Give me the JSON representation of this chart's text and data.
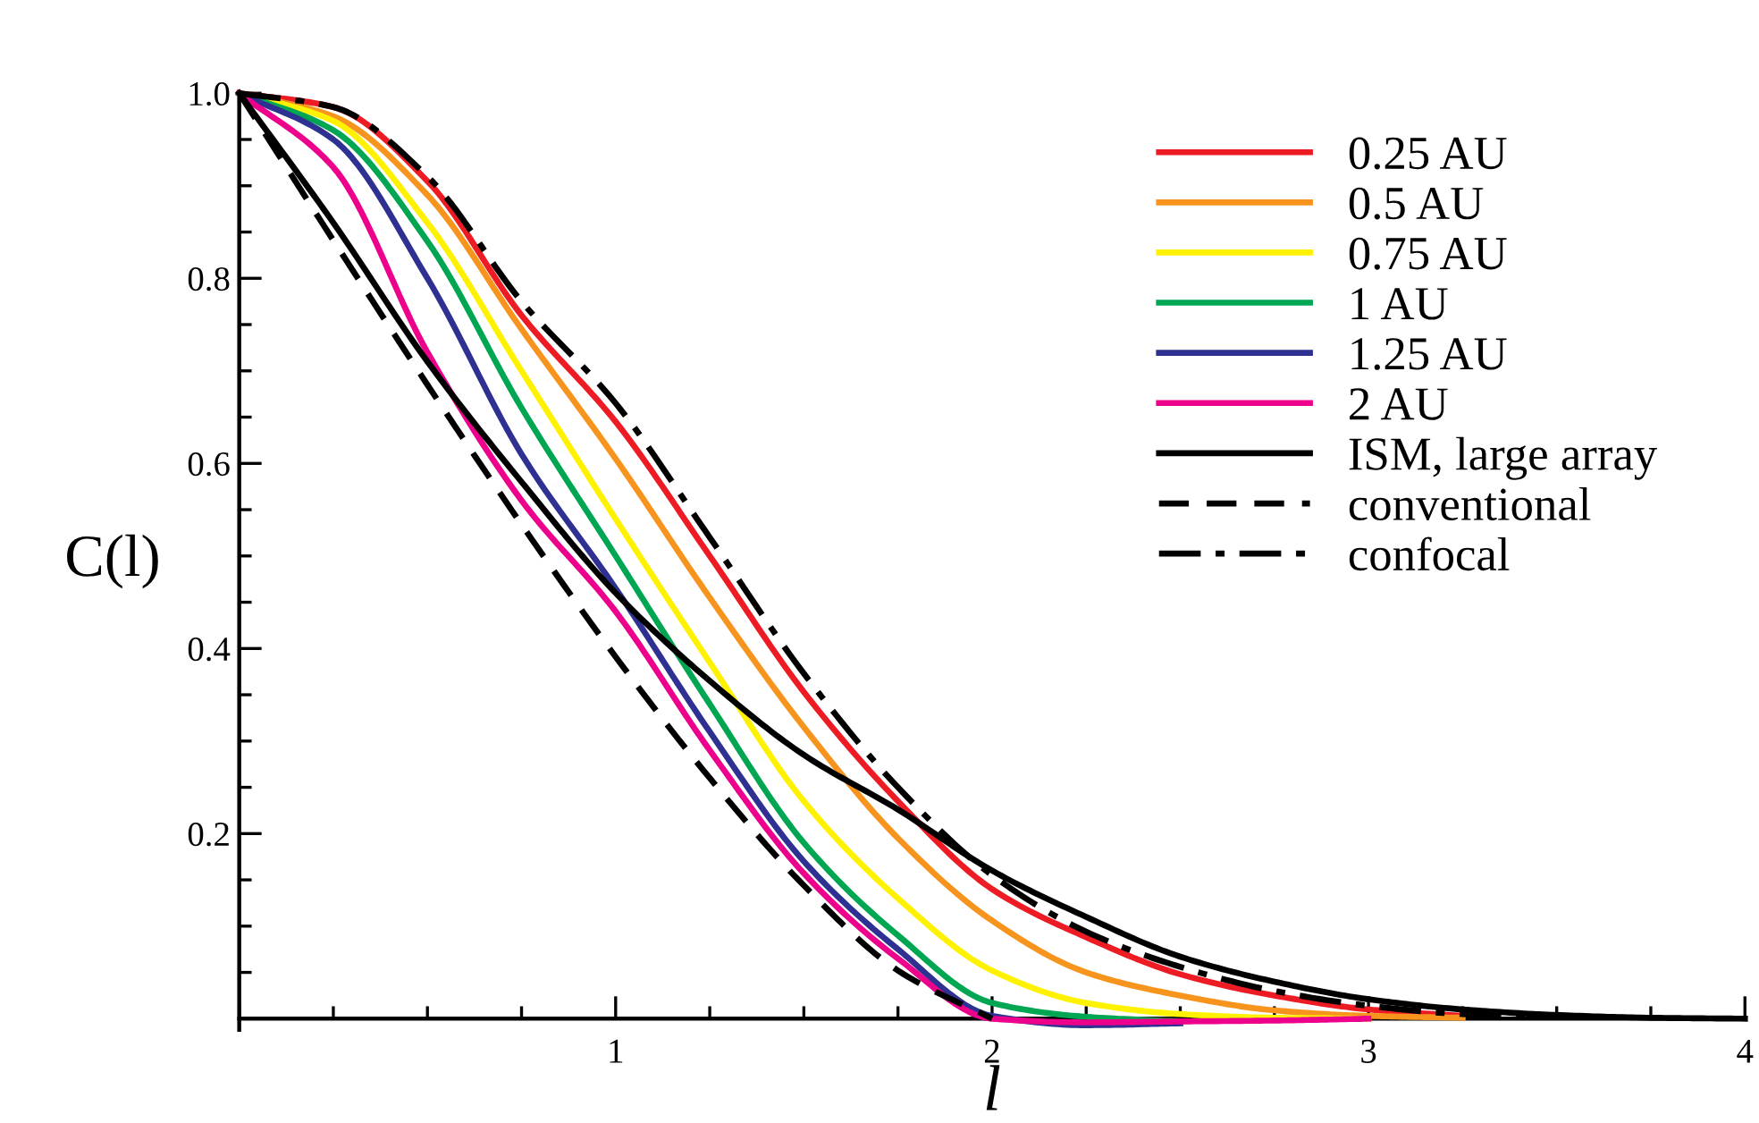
{
  "chart_data": {
    "type": "line",
    "xlabel": "l",
    "ylabel": "C(l)",
    "xlim": [
      0,
      4
    ],
    "ylim": [
      -0.012,
      1.0
    ],
    "xticks": [
      {
        "value": 0,
        "label": null
      },
      {
        "value": 0.25,
        "label": null
      },
      {
        "value": 0.5,
        "label": null
      },
      {
        "value": 0.75,
        "label": null
      },
      1,
      {
        "value": 1.25,
        "label": null
      },
      {
        "value": 1.5,
        "label": null
      },
      {
        "value": 1.75,
        "label": null
      },
      2,
      {
        "value": 2.25,
        "label": null
      },
      {
        "value": 2.5,
        "label": null
      },
      {
        "value": 2.75,
        "label": null
      },
      3,
      {
        "value": 3.25,
        "label": null
      },
      {
        "value": 3.5,
        "label": null
      },
      {
        "value": 3.75,
        "label": null
      },
      4
    ],
    "yticks": [
      {
        "value": 0,
        "label": null
      },
      {
        "value": 0.05,
        "label": null
      },
      {
        "value": 0.1,
        "label": null
      },
      {
        "value": 0.15,
        "label": null
      },
      0.2,
      {
        "value": 0.25,
        "label": null
      },
      {
        "value": 0.3,
        "label": null
      },
      {
        "value": 0.35,
        "label": null
      },
      0.4,
      {
        "value": 0.45,
        "label": null
      },
      {
        "value": 0.5,
        "label": null
      },
      {
        "value": 0.55,
        "label": null
      },
      0.6,
      {
        "value": 0.65,
        "label": null
      },
      {
        "value": 0.7,
        "label": null
      },
      {
        "value": 0.75,
        "label": null
      },
      0.8,
      {
        "value": 0.85,
        "label": null
      },
      {
        "value": 0.9,
        "label": null
      },
      {
        "value": 0.95,
        "label": null
      },
      {
        "value": 1,
        "label": "1.0"
      }
    ],
    "grid": false,
    "legend": "top right",
    "marker": "none",
    "x": [
      0,
      0.25,
      0.5,
      0.75,
      1,
      1.25,
      1.5,
      1.75,
      2,
      2.25,
      2.5,
      2.75,
      3,
      3.25,
      3.5,
      3.75,
      4
    ],
    "series": [
      {
        "name": "0.25 AU",
        "color": "#ed1c24",
        "line_style": "solid",
        "values": [
          1,
          0.985,
          0.905,
          0.76,
          0.645,
          0.5,
          0.353,
          0.235,
          0.14,
          0.088,
          0.048,
          0.025,
          0.01,
          0.003,
          null,
          null,
          null
        ]
      },
      {
        "name": "0.5 AU",
        "color": "#f7941d",
        "line_style": "solid",
        "values": [
          1,
          0.975,
          0.89,
          0.745,
          0.605,
          0.455,
          0.315,
          0.195,
          0.106,
          0.05,
          0.025,
          0.009,
          0.003,
          0.001,
          null,
          null,
          null
        ]
      },
      {
        "name": "0.75 AU",
        "color": "#fff200",
        "line_style": "solid",
        "values": [
          1,
          0.97,
          0.86,
          0.7,
          0.54,
          0.385,
          0.235,
          0.13,
          0.052,
          0.017,
          0.005,
          0.001,
          0,
          null,
          null,
          null,
          null
        ]
      },
      {
        "name": "1 AU",
        "color": "#00a651",
        "line_style": "solid",
        "values": [
          1,
          0.96,
          0.84,
          0.66,
          0.5,
          0.34,
          0.19,
          0.09,
          0.017,
          0.002,
          -0.003,
          null,
          null,
          null,
          null,
          null,
          null
        ]
      },
      {
        "name": "1.25 AU",
        "color": "#2e3192",
        "line_style": "solid",
        "values": [
          1,
          0.95,
          0.8,
          0.61,
          0.465,
          0.31,
          0.17,
          0.075,
          0.003,
          -0.007,
          -0.005,
          null,
          null,
          null,
          null,
          null,
          null
        ]
      },
      {
        "name": "2 AU",
        "color": "#ec008c",
        "line_style": "solid",
        "values": [
          1,
          0.92,
          0.72,
          0.56,
          0.44,
          0.29,
          0.157,
          0.065,
          0,
          -0.004,
          -0.003,
          -0.002,
          0,
          null,
          null,
          null,
          null
        ]
      },
      {
        "name": "ISM, large array",
        "color": "#000000",
        "line_style": "solid",
        "values": [
          1,
          0.86,
          0.71,
          0.58,
          0.46,
          0.365,
          0.285,
          0.226,
          0.16,
          0.11,
          0.067,
          0.04,
          0.021,
          0.01,
          0.004,
          0.001,
          0
        ]
      },
      {
        "name": "conventional",
        "color": "#000000",
        "line_style": "dashed",
        "values": [
          1,
          0.841,
          0.685,
          0.534,
          0.391,
          0.26,
          0.144,
          0.052,
          0,
          null,
          null,
          null,
          null,
          null,
          null,
          null,
          null
        ]
      },
      {
        "name": "confocal",
        "color": "#000000",
        "line_style": "dashdot",
        "values": [
          1,
          0.985,
          0.91,
          0.775,
          0.665,
          0.52,
          0.373,
          0.25,
          0.155,
          0.094,
          0.056,
          0.03,
          0.014,
          0.005,
          0.002,
          null,
          null
        ]
      }
    ]
  }
}
